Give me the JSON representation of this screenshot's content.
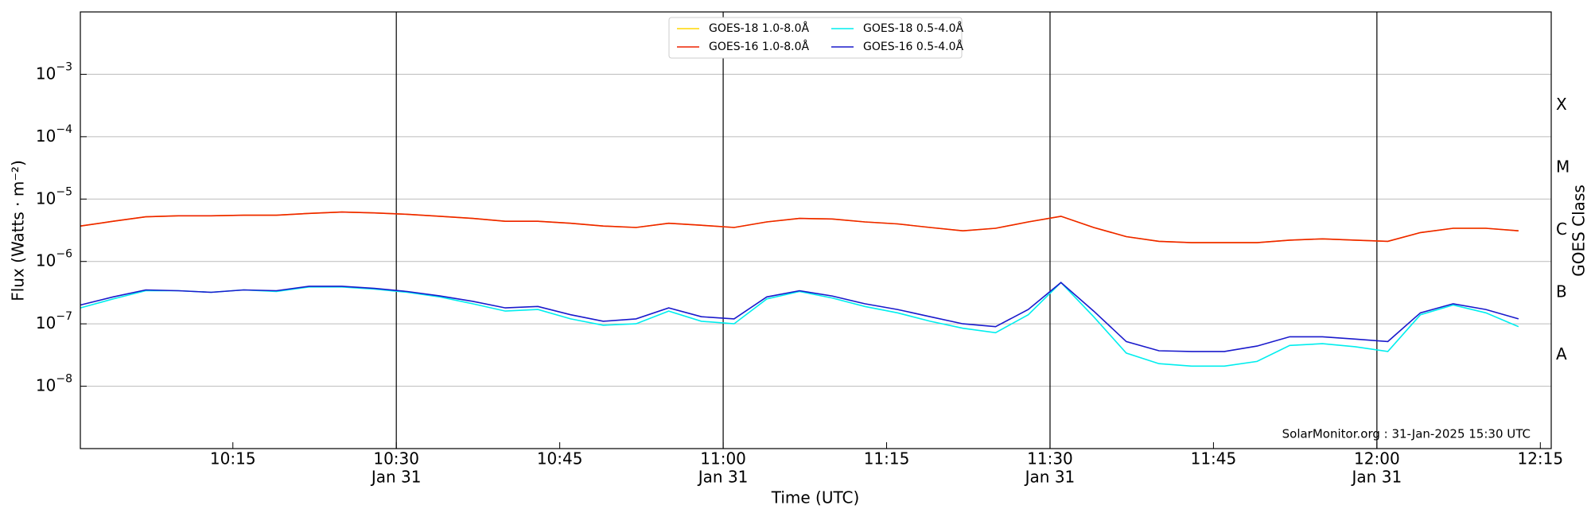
{
  "chart_data": {
    "type": "line",
    "x_label": "Time (UTC)",
    "y_label": "Flux (Watts · m⁻²)",
    "y2_label": "GOES Class",
    "annotation": "SolarMonitor.org : 31-Jan-2025 15:30 UTC",
    "log_y": true,
    "grid": true,
    "legend": "upper center",
    "x": [
      "10:01",
      "10:04",
      "10:07",
      "10:10",
      "10:13",
      "10:16",
      "10:19",
      "10:22",
      "10:25",
      "10:28",
      "10:31",
      "10:34",
      "10:37",
      "10:40",
      "10:43",
      "10:46",
      "10:49",
      "10:52",
      "10:55",
      "10:58",
      "11:01",
      "11:04",
      "11:07",
      "11:10",
      "11:13",
      "11:16",
      "11:19",
      "11:22",
      "11:25",
      "11:28",
      "11:31",
      "11:34",
      "11:37",
      "11:40",
      "11:43",
      "11:46",
      "11:49",
      "11:52",
      "11:55",
      "11:58",
      "12:01",
      "12:04",
      "12:07",
      "12:10",
      "12:13"
    ],
    "xlim": [
      "10:01",
      "12:16"
    ],
    "xticks": [
      "10:15",
      {
        "value": "10:30",
        "label": [
          "10:30",
          "Jan 31"
        ]
      },
      "10:45",
      {
        "value": "11:00",
        "label": [
          "11:00",
          "Jan 31"
        ]
      },
      "11:15",
      {
        "value": "11:30",
        "label": [
          "11:30",
          "Jan 31"
        ]
      },
      "11:45",
      {
        "value": "12:00",
        "label": [
          "12:00",
          "Jan 31"
        ]
      },
      "12:15"
    ],
    "vlines": [
      "10:30",
      "11:00",
      "11:30",
      "12:00"
    ],
    "ylim": [
      1e-09,
      0.01
    ],
    "yticks": [
      {
        "value": 1e-08,
        "label": [
          "10",
          "−8"
        ]
      },
      {
        "value": 1e-07,
        "label": [
          "10",
          "−7"
        ]
      },
      {
        "value": 1e-06,
        "label": [
          "10",
          "−6"
        ]
      },
      {
        "value": 1e-05,
        "label": [
          "10",
          "−5"
        ]
      },
      {
        "value": 0.0001,
        "label": [
          "10",
          "−4"
        ]
      },
      {
        "value": 0.001,
        "label": [
          "10",
          "−3"
        ]
      }
    ],
    "classes": [
      {
        "value": 3.16e-08,
        "label": "A"
      },
      {
        "value": 3.16e-07,
        "label": "B"
      },
      {
        "value": 3.16e-06,
        "label": "C"
      },
      {
        "value": 3.16e-05,
        "label": "M"
      },
      {
        "value": 0.000316,
        "label": "X"
      }
    ],
    "series": [
      {
        "name": "GOES-18 1.0-8.0Å",
        "color": "#ffd700",
        "values": [
          3.7e-06,
          4.4e-06,
          5.2e-06,
          5.4e-06,
          5.4e-06,
          5.5e-06,
          5.5e-06,
          5.9e-06,
          6.2e-06,
          6e-06,
          5.7e-06,
          5.3e-06,
          4.9e-06,
          4.4e-06,
          4.4e-06,
          4.1e-06,
          3.7e-06,
          3.5e-06,
          4.1e-06,
          3.8e-06,
          3.5e-06,
          4.3e-06,
          4.9e-06,
          4.8e-06,
          4.3e-06,
          4e-06,
          3.5e-06,
          3.1e-06,
          3.4e-06,
          4.3e-06,
          5.3e-06,
          3.5e-06,
          2.5e-06,
          2.1e-06,
          2e-06,
          2e-06,
          2e-06,
          2.2e-06,
          2.3e-06,
          2.2e-06,
          2.1e-06,
          2.9e-06,
          3.4e-06,
          3.4e-06,
          3.1e-06
        ]
      },
      {
        "name": "GOES-16 1.0-8.0Å",
        "color": "#ee2200",
        "values": [
          3.7e-06,
          4.4e-06,
          5.2e-06,
          5.4e-06,
          5.4e-06,
          5.5e-06,
          5.5e-06,
          5.9e-06,
          6.2e-06,
          6e-06,
          5.7e-06,
          5.3e-06,
          4.9e-06,
          4.4e-06,
          4.4e-06,
          4.1e-06,
          3.7e-06,
          3.5e-06,
          4.1e-06,
          3.8e-06,
          3.5e-06,
          4.3e-06,
          4.9e-06,
          4.8e-06,
          4.3e-06,
          4e-06,
          3.5e-06,
          3.1e-06,
          3.4e-06,
          4.3e-06,
          5.3e-06,
          3.5e-06,
          2.5e-06,
          2.1e-06,
          2e-06,
          2e-06,
          2e-06,
          2.2e-06,
          2.3e-06,
          2.2e-06,
          2.1e-06,
          2.9e-06,
          3.4e-06,
          3.4e-06,
          3.1e-06
        ]
      },
      {
        "name": "GOES-18 0.5-4.0Å",
        "color": "#00eeee",
        "values": [
          1.8e-07,
          2.5e-07,
          3.4e-07,
          3.4e-07,
          3.2e-07,
          3.5e-07,
          3.3e-07,
          3.9e-07,
          3.9e-07,
          3.6e-07,
          3.2e-07,
          2.7e-07,
          2.1e-07,
          1.6e-07,
          1.7e-07,
          1.2e-07,
          9.5e-08,
          1e-07,
          1.6e-07,
          1.1e-07,
          1e-07,
          2.5e-07,
          3.3e-07,
          2.6e-07,
          1.9e-07,
          1.5e-07,
          1.1e-07,
          8.5e-08,
          7.2e-08,
          1.4e-07,
          4.6e-07,
          1.3e-07,
          3.4e-08,
          2.3e-08,
          2.1e-08,
          2.1e-08,
          2.5e-08,
          4.5e-08,
          4.8e-08,
          4.3e-08,
          3.6e-08,
          1.4e-07,
          2e-07,
          1.5e-07,
          9e-08
        ]
      },
      {
        "name": "GOES-16 0.5-4.0Å",
        "color": "#1a1acc",
        "values": [
          2e-07,
          2.7e-07,
          3.5e-07,
          3.4e-07,
          3.2e-07,
          3.5e-07,
          3.4e-07,
          4e-07,
          4e-07,
          3.7e-07,
          3.3e-07,
          2.8e-07,
          2.3e-07,
          1.8e-07,
          1.9e-07,
          1.4e-07,
          1.1e-07,
          1.2e-07,
          1.8e-07,
          1.3e-07,
          1.2e-07,
          2.7e-07,
          3.4e-07,
          2.8e-07,
          2.1e-07,
          1.7e-07,
          1.3e-07,
          1e-07,
          9e-08,
          1.7e-07,
          4.6e-07,
          1.6e-07,
          5.2e-08,
          3.7e-08,
          3.6e-08,
          3.6e-08,
          4.4e-08,
          6.2e-08,
          6.2e-08,
          5.7e-08,
          5.2e-08,
          1.5e-07,
          2.1e-07,
          1.7e-07,
          1.2e-07
        ]
      }
    ]
  }
}
